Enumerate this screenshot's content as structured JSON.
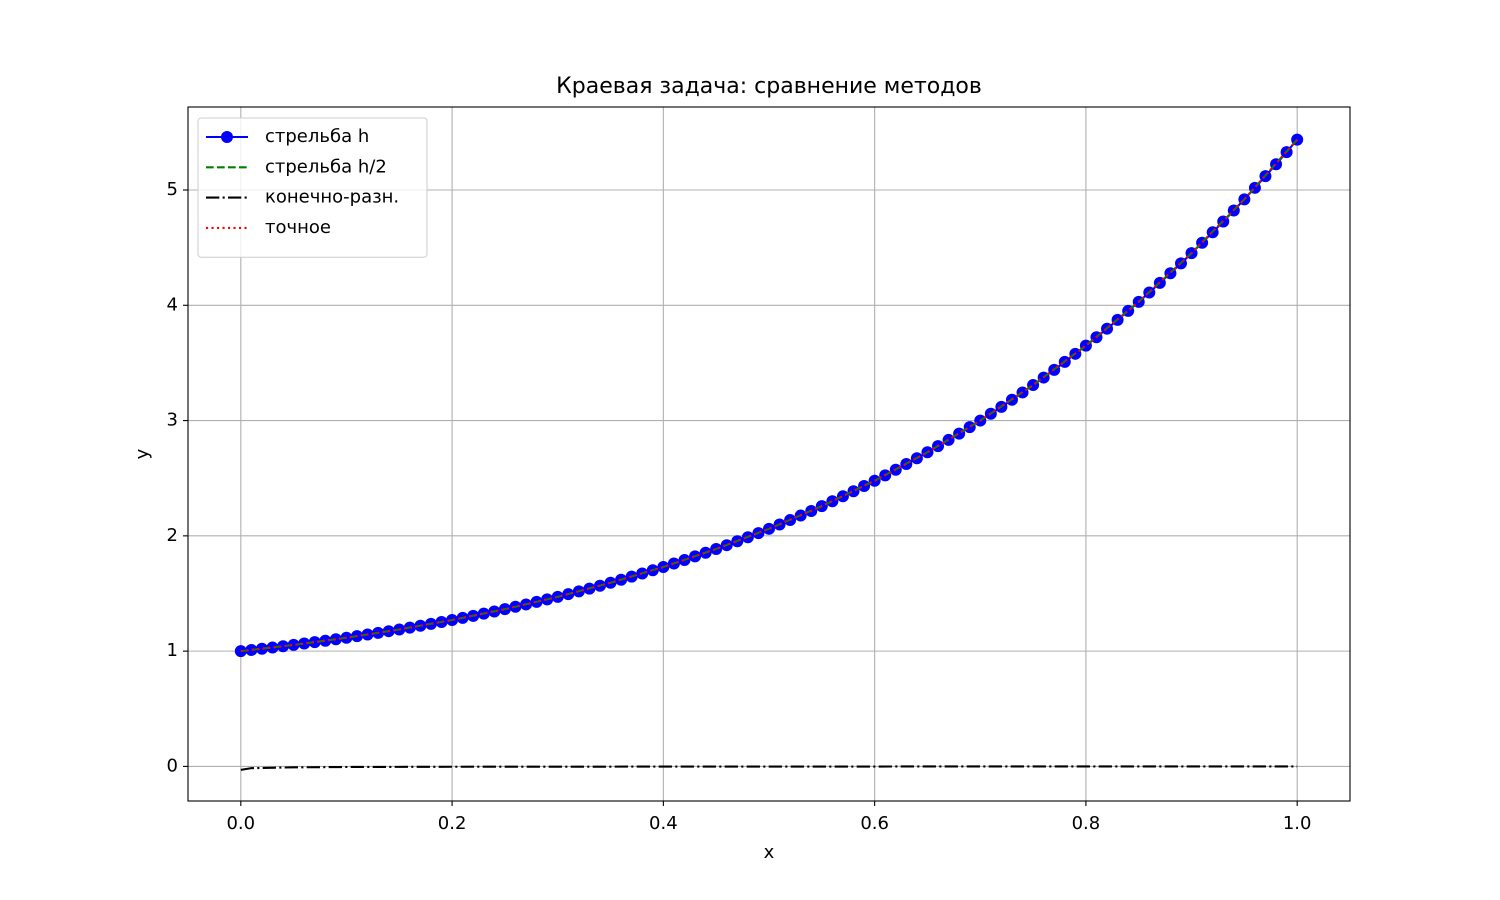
{
  "chart_data": {
    "type": "line",
    "title": "Краевая задача: сравнение методов",
    "x_label": "x",
    "y_label": "y",
    "xlim": [
      -0.05,
      1.05
    ],
    "xticks": [
      {
        "value": 0,
        "label": "0.0"
      },
      0.2,
      0.4,
      0.6,
      0.8,
      {
        "value": 1,
        "label": "1.0"
      }
    ],
    "ylim": [
      -0.3,
      5.72
    ],
    "yticks": [
      0,
      1,
      2,
      3,
      4,
      5
    ],
    "grid": true,
    "legend": "upper left",
    "series": [
      {
        "name": "стрельба  h",
        "color": "#0000ff",
        "style": "solid",
        "marker": "o",
        "x": [
          0,
          0.01,
          0.02,
          0.03,
          0.04,
          0.05,
          0.06,
          0.07,
          0.08,
          0.09,
          0.1,
          0.11,
          0.12,
          0.13,
          0.14,
          0.15,
          0.16,
          0.17,
          0.18,
          0.19,
          0.2,
          0.21,
          0.22,
          0.23,
          0.24,
          0.25,
          0.26,
          0.27,
          0.28,
          0.29,
          0.3,
          0.31,
          0.32,
          0.33,
          0.34,
          0.35,
          0.36,
          0.37,
          0.38,
          0.39,
          0.4,
          0.41,
          0.42,
          0.43,
          0.44,
          0.45,
          0.46,
          0.47,
          0.48,
          0.49,
          0.5,
          0.51,
          0.52,
          0.53,
          0.54,
          0.55,
          0.56,
          0.57,
          0.58,
          0.59,
          0.6,
          0.61,
          0.62,
          0.63,
          0.64,
          0.65,
          0.66,
          0.67,
          0.68,
          0.69,
          0.7,
          0.71,
          0.72,
          0.73,
          0.74,
          0.75,
          0.76,
          0.77,
          0.78,
          0.79,
          0.8,
          0.81,
          0.82,
          0.83,
          0.84,
          0.85,
          0.86,
          0.87,
          0.88,
          0.89,
          0.9,
          0.91,
          0.92,
          0.93,
          0.94,
          0.95,
          0.96,
          0.97,
          0.98,
          0.99,
          1
        ],
        "values": [
          1.0,
          1.01,
          1.021,
          1.031,
          1.042,
          1.054,
          1.066,
          1.078,
          1.09,
          1.103,
          1.116,
          1.13,
          1.144,
          1.158,
          1.173,
          1.188,
          1.204,
          1.22,
          1.236,
          1.253,
          1.27,
          1.288,
          1.306,
          1.325,
          1.344,
          1.364,
          1.385,
          1.405,
          1.427,
          1.449,
          1.471,
          1.494,
          1.518,
          1.542,
          1.567,
          1.593,
          1.619,
          1.646,
          1.673,
          1.702,
          1.73,
          1.76,
          1.79,
          1.822,
          1.853,
          1.886,
          1.919,
          1.953,
          1.988,
          2.024,
          2.061,
          2.098,
          2.137,
          2.176,
          2.216,
          2.258,
          2.3,
          2.343,
          2.387,
          2.432,
          2.478,
          2.525,
          2.573,
          2.623,
          2.673,
          2.725,
          2.778,
          2.832,
          2.887,
          2.943,
          3.0,
          3.059,
          3.119,
          3.181,
          3.244,
          3.308,
          3.373,
          3.44,
          3.509,
          3.579,
          3.65,
          3.723,
          3.797,
          3.873,
          3.951,
          4.03,
          4.111,
          4.194,
          4.278,
          4.364,
          4.452,
          4.542,
          4.633,
          4.727,
          4.822,
          4.919,
          5.019,
          5.12,
          5.223,
          5.329,
          5.437
        ]
      },
      {
        "name": "стрельба  h/2",
        "color": "#008000",
        "style": "dashed",
        "marker": "none",
        "x": [
          0,
          0.05,
          0.1,
          0.15,
          0.2,
          0.25,
          0.3,
          0.35,
          0.4,
          0.45,
          0.5,
          0.55,
          0.6,
          0.65,
          0.7,
          0.75,
          0.8,
          0.85,
          0.9,
          0.95,
          1
        ],
        "values": [
          1.0,
          1.054,
          1.116,
          1.188,
          1.27,
          1.364,
          1.471,
          1.593,
          1.73,
          1.886,
          2.061,
          2.258,
          2.478,
          2.725,
          3.0,
          3.308,
          3.65,
          4.03,
          4.452,
          4.919,
          5.437
        ]
      },
      {
        "name": "конечно-разн.",
        "color": "#000000",
        "style": "dashdot",
        "marker": "none",
        "x": [
          0,
          0.01,
          0.05,
          0.1,
          0.15,
          0.2,
          0.25,
          0.3,
          0.35,
          0.4,
          0.45,
          0.5,
          0.55,
          0.6,
          0.65,
          0.7,
          0.75,
          0.8,
          0.85,
          0.9,
          0.95,
          1
        ],
        "values": [
          -0.03,
          -0.015,
          -0.008,
          -0.005,
          -0.004,
          -0.003,
          -0.002,
          -0.002,
          -0.002,
          -0.001,
          -0.001,
          -0.001,
          -0.001,
          -0.001,
          0,
          0,
          0,
          0,
          0,
          0,
          0,
          0
        ]
      },
      {
        "name": "точное",
        "color": "#ff0000",
        "style": "dotted",
        "marker": "none",
        "x": [
          0,
          0.05,
          0.1,
          0.15,
          0.2,
          0.25,
          0.3,
          0.35,
          0.4,
          0.45,
          0.5,
          0.55,
          0.6,
          0.65,
          0.7,
          0.75,
          0.8,
          0.85,
          0.9,
          0.95,
          1
        ],
        "values": [
          1.0,
          1.054,
          1.116,
          1.188,
          1.27,
          1.364,
          1.471,
          1.593,
          1.73,
          1.886,
          2.061,
          2.258,
          2.478,
          2.725,
          3.0,
          3.308,
          3.65,
          4.03,
          4.452,
          4.919,
          5.437
        ]
      }
    ]
  }
}
